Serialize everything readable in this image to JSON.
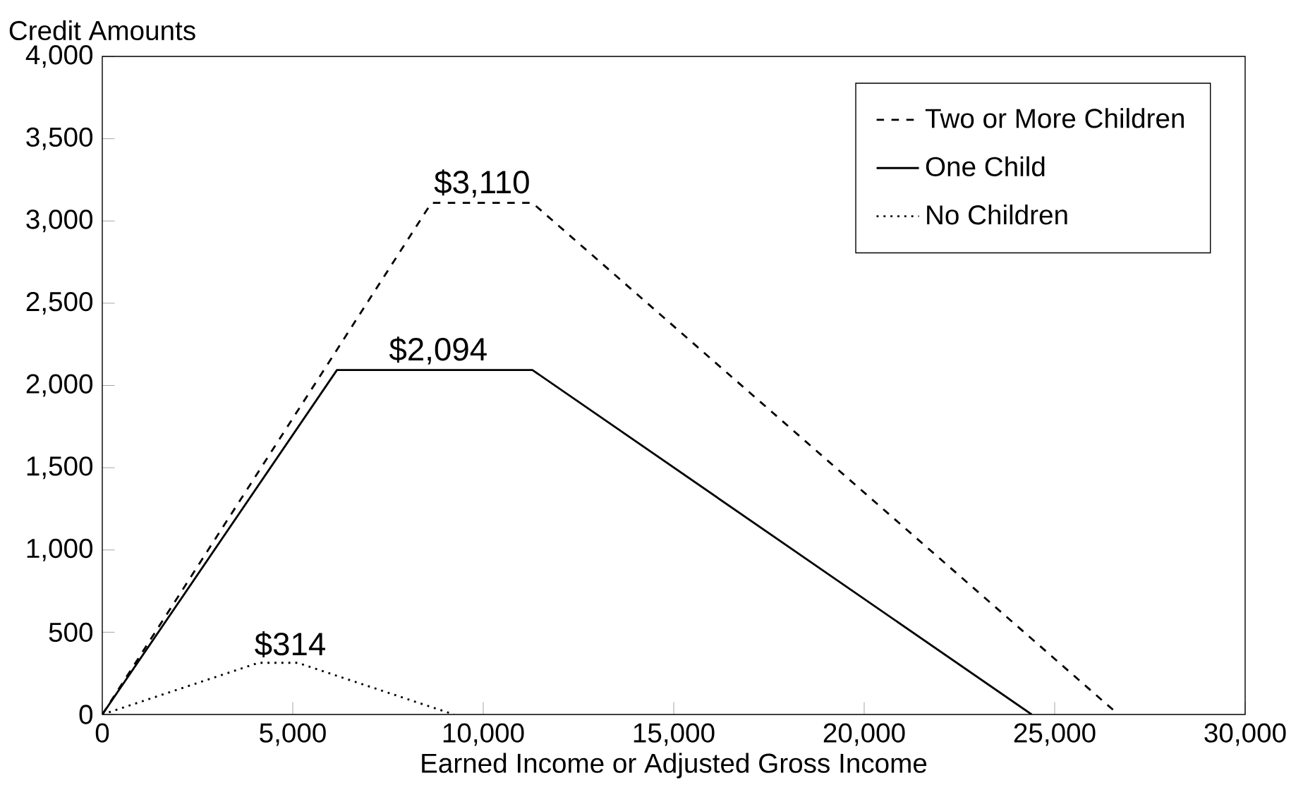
{
  "chart_data": {
    "type": "line",
    "xlabel": "Earned Income or Adjusted Gross Income",
    "ylabel": "Credit Amounts",
    "xlim": [
      0,
      30000
    ],
    "ylim": [
      0,
      4000
    ],
    "xticks": [
      0,
      {
        "value": 5000,
        "label": "5,000"
      },
      {
        "value": 10000,
        "label": "10,000"
      },
      {
        "value": 15000,
        "label": "15,000"
      },
      {
        "value": 20000,
        "label": "20,000"
      },
      {
        "value": 25000,
        "label": "25,000"
      },
      {
        "value": 30000,
        "label": "30,000"
      }
    ],
    "yticks": [
      0,
      500,
      {
        "value": 1000,
        "label": "1,000"
      },
      {
        "value": 1500,
        "label": "1,500"
      },
      {
        "value": 2000,
        "label": "2,000"
      },
      {
        "value": 2500,
        "label": "2,500"
      },
      {
        "value": 3000,
        "label": "3,000"
      },
      {
        "value": 3500,
        "label": "3,500"
      },
      {
        "value": 4000,
        "label": "4,000"
      }
    ],
    "grid": false,
    "legend": "top right",
    "series": [
      {
        "name": "Two or More Children",
        "color": "#000000",
        "line_style": "dashed",
        "x": [
          0,
          8640,
          11290,
          26673
        ],
        "values": [
          0,
          3110,
          3110,
          0
        ]
      },
      {
        "name": "One Child",
        "color": "#000000",
        "line_style": "solid",
        "x": [
          0,
          6160,
          11290,
          24396
        ],
        "values": [
          0,
          2094,
          2094,
          0
        ]
      },
      {
        "name": "No Children",
        "color": "#000000",
        "line_style": "dotted",
        "x": [
          0,
          4100,
          5130,
          9230
        ],
        "values": [
          0,
          314,
          314,
          0
        ]
      }
    ],
    "annotations": [
      {
        "text": "$3,110",
        "x": 9970,
        "y": 3110
      },
      {
        "text": "$2,094",
        "x": 8820,
        "y": 2094
      },
      {
        "text": "$314",
        "x": 4935,
        "y": 314
      }
    ]
  }
}
